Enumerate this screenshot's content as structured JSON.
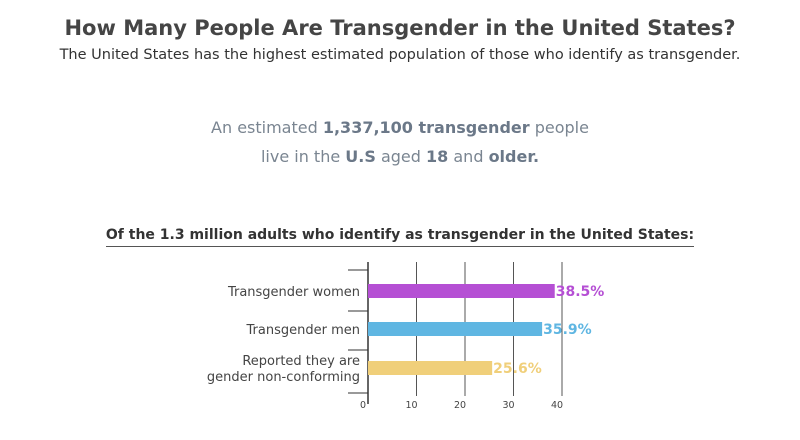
{
  "title": "How Many People Are Transgender in the United States?",
  "subtitle": "The United States has the highest estimated population of those who identify as transgender.",
  "stat_line1": {
    "p1": "An estimated ",
    "b1": "1,337,100 transgender",
    "p2": " people"
  },
  "stat_line2": {
    "p1": "live in the ",
    "b1": "U.S",
    "p2": " aged ",
    "b2": "18",
    "p3": " and ",
    "b3": "older."
  },
  "chart_heading": "Of the 1.3 million adults who identify as transgender in the United States:",
  "chart_data": {
    "type": "bar",
    "orientation": "horizontal",
    "categories": [
      [
        "Transgender women"
      ],
      [
        "Transgender men"
      ],
      [
        "Reported they are",
        "gender non-conforming"
      ]
    ],
    "values": [
      38.5,
      35.9,
      25.6
    ],
    "value_labels": [
      "38.5%",
      "35.9%",
      "25.6%"
    ],
    "colors": [
      "#b54fd4",
      "#5fb6e2",
      "#f0cf7a"
    ],
    "xlim": [
      0,
      40
    ],
    "xticks": [
      0,
      10,
      20,
      30,
      40
    ],
    "grid": true
  }
}
